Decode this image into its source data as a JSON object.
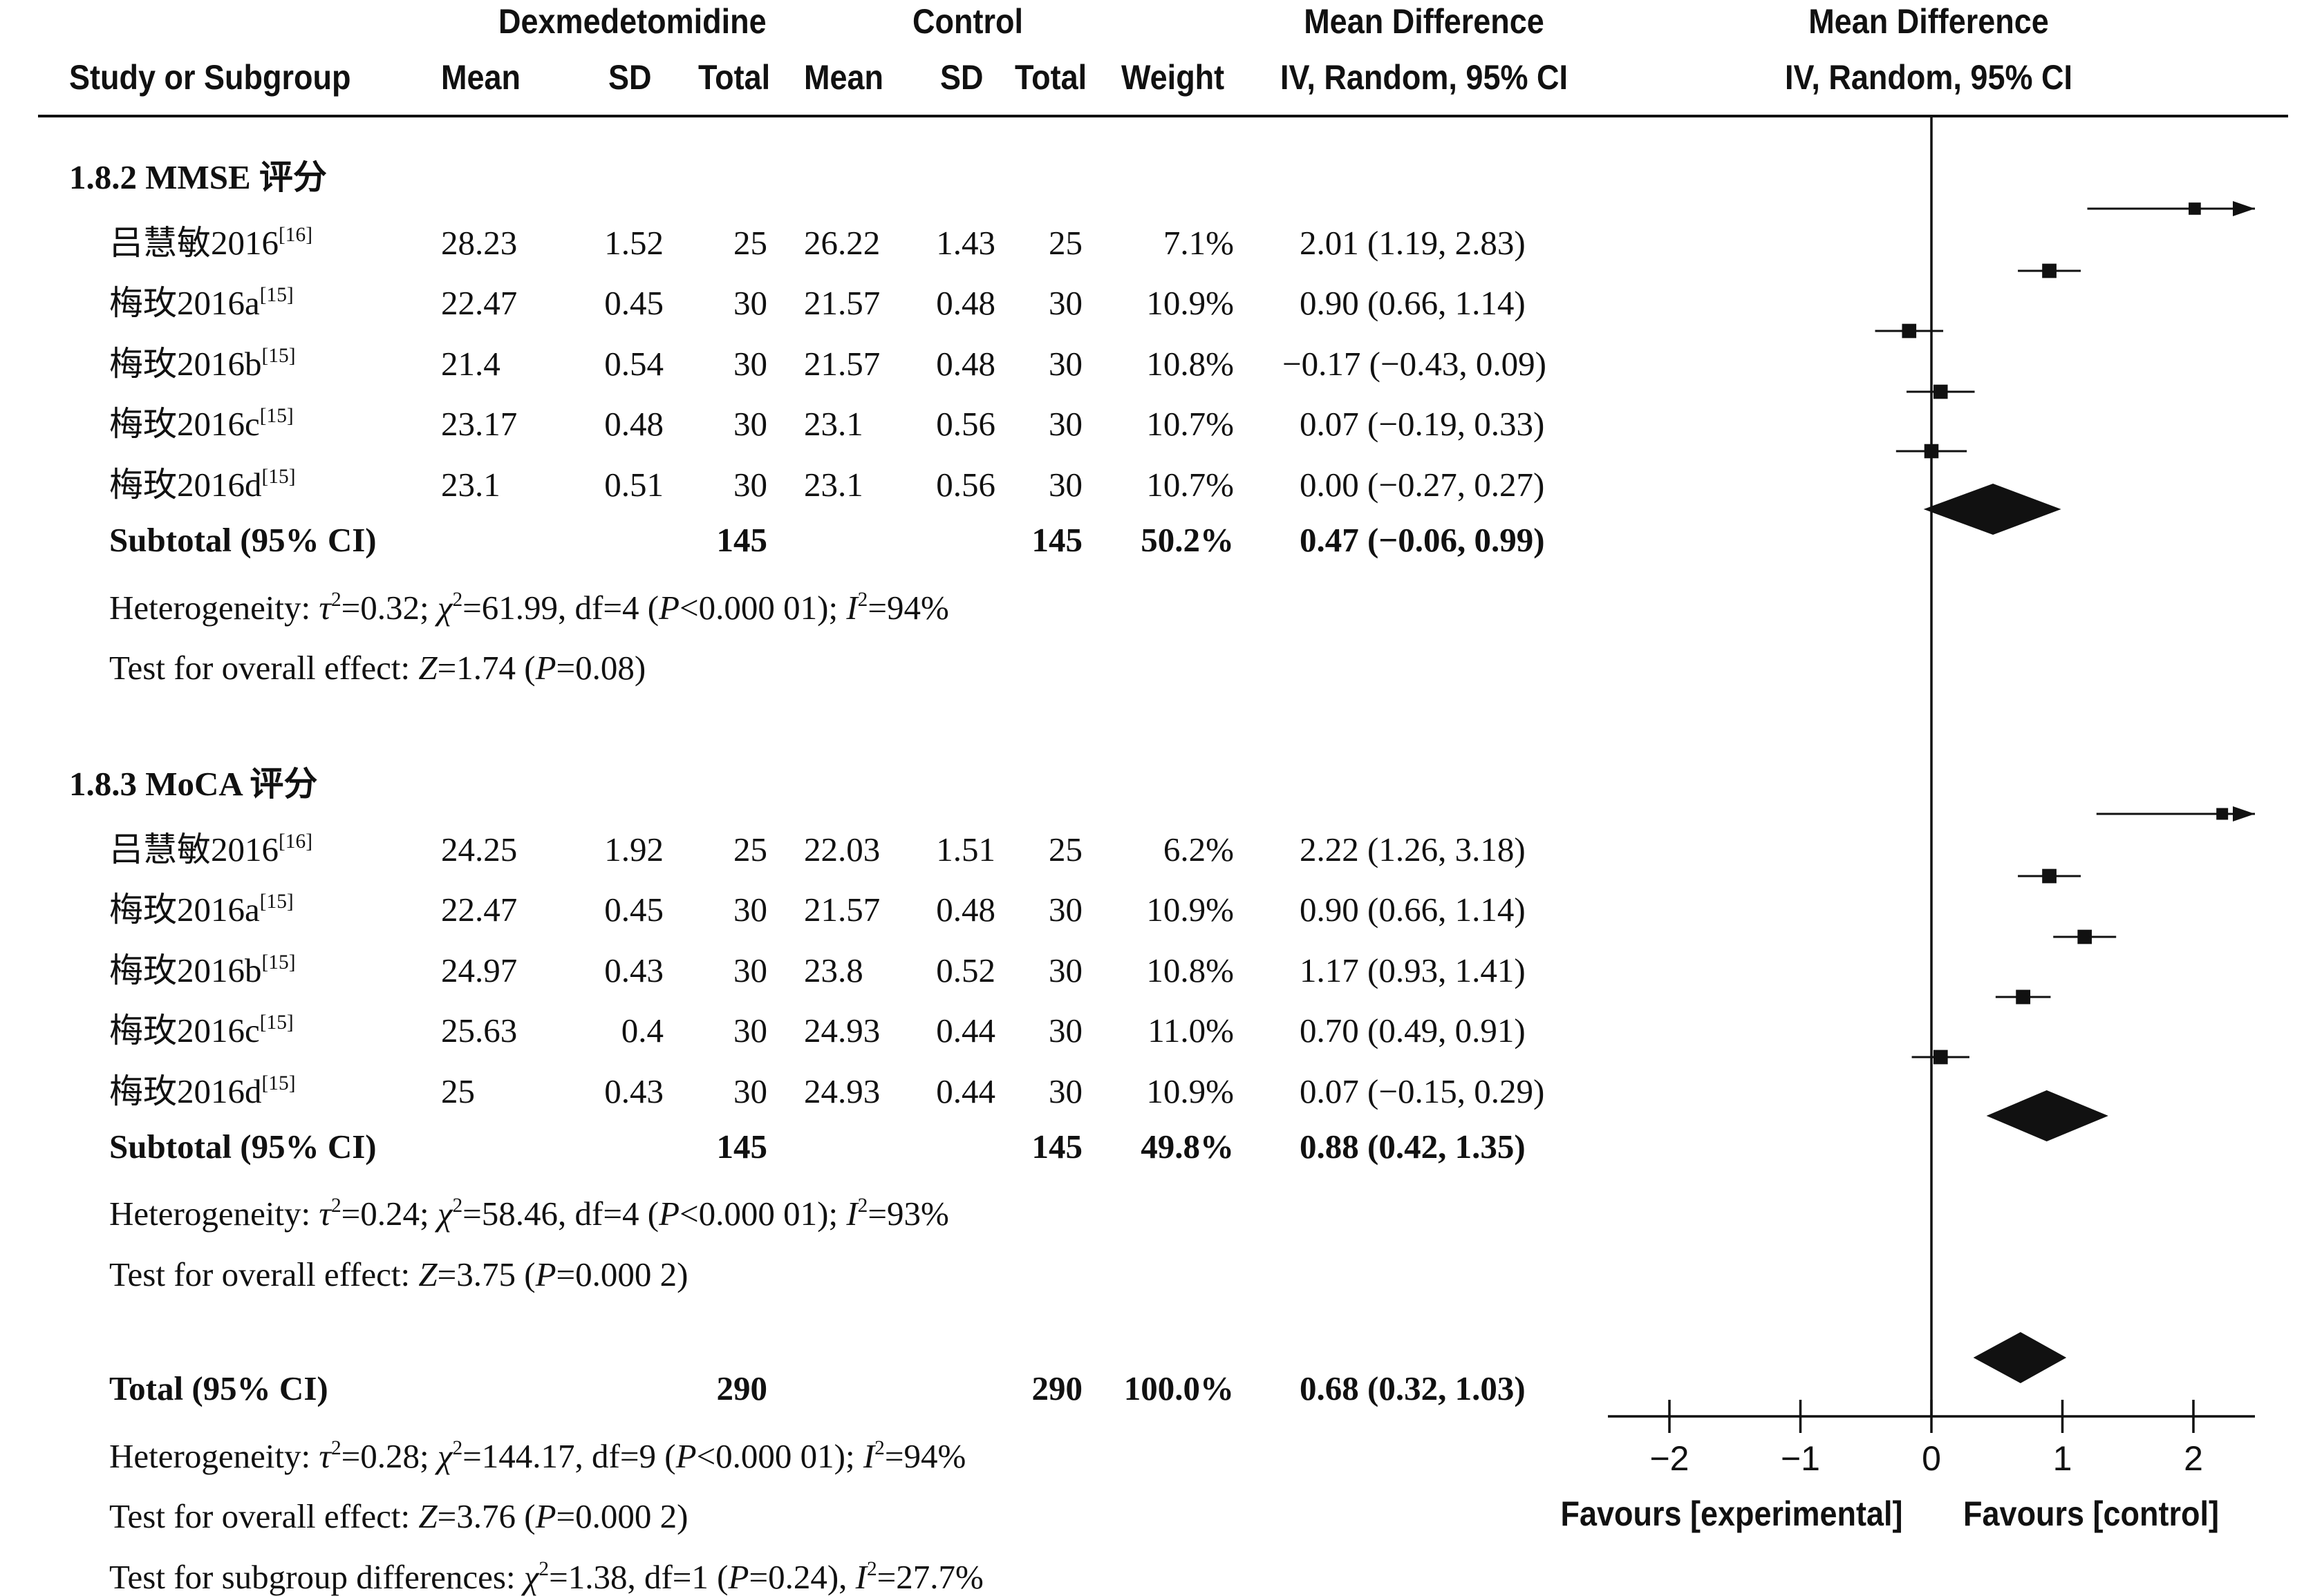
{
  "header": {
    "group_exp": "Dexmedetomidine",
    "group_ctrl": "Control",
    "md_title": "Mean Difference",
    "md_subtitle": "IV, Random, 95% CI",
    "plot_title": "Mean Difference",
    "plot_subtitle": "IV, Random, 95% CI",
    "col_study": "Study or Subgroup",
    "col_mean": "Mean",
    "col_sd": "SD",
    "col_total": "Total",
    "col_weight": "Weight"
  },
  "subgroups": [
    {
      "title": "1.8.2 MMSE 评分",
      "studies": [
        {
          "name": "吕慧敏2016",
          "ref": "[16]",
          "e_mean": "28.23",
          "e_sd": "1.52",
          "e_total": "25",
          "c_mean": "26.22",
          "c_sd": "1.43",
          "c_total": "25",
          "weight": "7.1%",
          "ci": "2.01 (1.19, 2.83)",
          "md": 2.01,
          "lo": 1.19,
          "hi": 2.83,
          "w": 7.1
        },
        {
          "name": "梅玫2016a",
          "ref": "[15]",
          "e_mean": "22.47",
          "e_sd": "0.45",
          "e_total": "30",
          "c_mean": "21.57",
          "c_sd": "0.48",
          "c_total": "30",
          "weight": "10.9%",
          "ci": "0.90 (0.66, 1.14)",
          "md": 0.9,
          "lo": 0.66,
          "hi": 1.14,
          "w": 10.9
        },
        {
          "name": "梅玫2016b",
          "ref": "[15]",
          "e_mean": "21.4",
          "e_sd": "0.54",
          "e_total": "30",
          "c_mean": "21.57",
          "c_sd": "0.48",
          "c_total": "30",
          "weight": "10.8%",
          "ci": "−0.17 (−0.43, 0.09)",
          "md": -0.17,
          "lo": -0.43,
          "hi": 0.09,
          "w": 10.8
        },
        {
          "name": "梅玫2016c",
          "ref": "[15]",
          "e_mean": "23.17",
          "e_sd": "0.48",
          "e_total": "30",
          "c_mean": "23.1",
          "c_sd": "0.56",
          "c_total": "30",
          "weight": "10.7%",
          "ci": "0.07 (−0.19, 0.33)",
          "md": 0.07,
          "lo": -0.19,
          "hi": 0.33,
          "w": 10.7
        },
        {
          "name": "梅玫2016d",
          "ref": "[15]",
          "e_mean": "23.1",
          "e_sd": "0.51",
          "e_total": "30",
          "c_mean": "23.1",
          "c_sd": "0.56",
          "c_total": "30",
          "weight": "10.7%",
          "ci": "0.00 (−0.27, 0.27)",
          "md": 0.0,
          "lo": -0.27,
          "hi": 0.27,
          "w": 10.7
        }
      ],
      "subtotal": {
        "label": "Subtotal (95% CI)",
        "e_total": "145",
        "c_total": "145",
        "weight": "50.2%",
        "ci": "0.47 (−0.06, 0.99)",
        "md": 0.47,
        "lo": -0.06,
        "hi": 0.99
      },
      "heterogeneity": {
        "prefix": "Heterogeneity: ",
        "tau": "τ",
        "tau_val": "=0.32; ",
        "chi": "χ",
        "chi_val": "=61.99, df=4 (",
        "p": "P",
        "p_val": "<0.000 01); ",
        "i": "I",
        "i_val": "=94%"
      },
      "overall": {
        "prefix": "Test for overall effect: ",
        "z": "Z",
        "z_val": "=1.74 (",
        "p": "P",
        "p_val": "=0.08)"
      }
    },
    {
      "title": "1.8.3 MoCA 评分",
      "studies": [
        {
          "name": "吕慧敏2016",
          "ref": "[16]",
          "e_mean": "24.25",
          "e_sd": "1.92",
          "e_total": "25",
          "c_mean": "22.03",
          "c_sd": "1.51",
          "c_total": "25",
          "weight": "6.2%",
          "ci": "2.22 (1.26, 3.18)",
          "md": 2.22,
          "lo": 1.26,
          "hi": 3.18,
          "w": 6.2
        },
        {
          "name": "梅玫2016a",
          "ref": "[15]",
          "e_mean": "22.47",
          "e_sd": "0.45",
          "e_total": "30",
          "c_mean": "21.57",
          "c_sd": "0.48",
          "c_total": "30",
          "weight": "10.9%",
          "ci": "0.90 (0.66, 1.14)",
          "md": 0.9,
          "lo": 0.66,
          "hi": 1.14,
          "w": 10.9
        },
        {
          "name": "梅玫2016b",
          "ref": "[15]",
          "e_mean": "24.97",
          "e_sd": "0.43",
          "e_total": "30",
          "c_mean": "23.8",
          "c_sd": "0.52",
          "c_total": "30",
          "weight": "10.8%",
          "ci": "1.17 (0.93, 1.41)",
          "md": 1.17,
          "lo": 0.93,
          "hi": 1.41,
          "w": 10.8
        },
        {
          "name": "梅玫2016c",
          "ref": "[15]",
          "e_mean": "25.63",
          "e_sd": "0.4",
          "e_total": "30",
          "c_mean": "24.93",
          "c_sd": "0.44",
          "c_total": "30",
          "weight": "11.0%",
          "ci": "0.70 (0.49, 0.91)",
          "md": 0.7,
          "lo": 0.49,
          "hi": 0.91,
          "w": 11.0
        },
        {
          "name": "梅玫2016d",
          "ref": "[15]",
          "e_mean": "25",
          "e_sd": "0.43",
          "e_total": "30",
          "c_mean": "24.93",
          "c_sd": "0.44",
          "c_total": "30",
          "weight": "10.9%",
          "ci": "0.07 (−0.15, 0.29)",
          "md": 0.07,
          "lo": -0.15,
          "hi": 0.29,
          "w": 10.9
        }
      ],
      "subtotal": {
        "label": "Subtotal (95% CI)",
        "e_total": "145",
        "c_total": "145",
        "weight": "49.8%",
        "ci": "0.88 (0.42, 1.35)",
        "md": 0.88,
        "lo": 0.42,
        "hi": 1.35
      },
      "heterogeneity": {
        "prefix": "Heterogeneity: ",
        "tau": "τ",
        "tau_val": "=0.24; ",
        "chi": "χ",
        "chi_val": "=58.46, df=4 (",
        "p": "P",
        "p_val": "<0.000 01); ",
        "i": "I",
        "i_val": "=93%"
      },
      "overall": {
        "prefix": "Test for overall effect: ",
        "z": "Z",
        "z_val": "=3.75 (",
        "p": "P",
        "p_val": "=0.000 2)"
      }
    }
  ],
  "total": {
    "label": "Total (95% CI)",
    "e_total": "290",
    "c_total": "290",
    "weight": "100.0%",
    "ci": "0.68 (0.32, 1.03)",
    "md": 0.68,
    "lo": 0.32,
    "hi": 1.03
  },
  "total_heterogeneity": {
    "prefix": "Heterogeneity: ",
    "tau": "τ",
    "tau_val": "=0.28; ",
    "chi": "χ",
    "chi_val": "=144.17, df=9 (",
    "p": "P",
    "p_val": "<0.000 01); ",
    "i": "I",
    "i_val": "=94%"
  },
  "total_overall": {
    "prefix": "Test for overall effect: ",
    "z": "Z",
    "z_val": "=3.76 (",
    "p": "P",
    "p_val": "=0.000 2)"
  },
  "subgroup_diff": {
    "prefix": "Test for subgroup differences: ",
    "chi": "χ",
    "chi_val": "=1.38, df=1 (",
    "p": "P",
    "p_val": "=0.24), ",
    "i": "I",
    "i_val": "=27.7%"
  },
  "sup2": "2",
  "chart_data": {
    "type": "forest",
    "xlim": [
      -2.5,
      2.5
    ],
    "xticks": [
      "−2",
      "−1",
      "0",
      "1",
      "2"
    ],
    "xtick_values": [
      -2,
      -1,
      0,
      1,
      2
    ],
    "favours_left": "Favours [experimental]",
    "favours_right": "Favours [control]",
    "null_line": 0
  }
}
